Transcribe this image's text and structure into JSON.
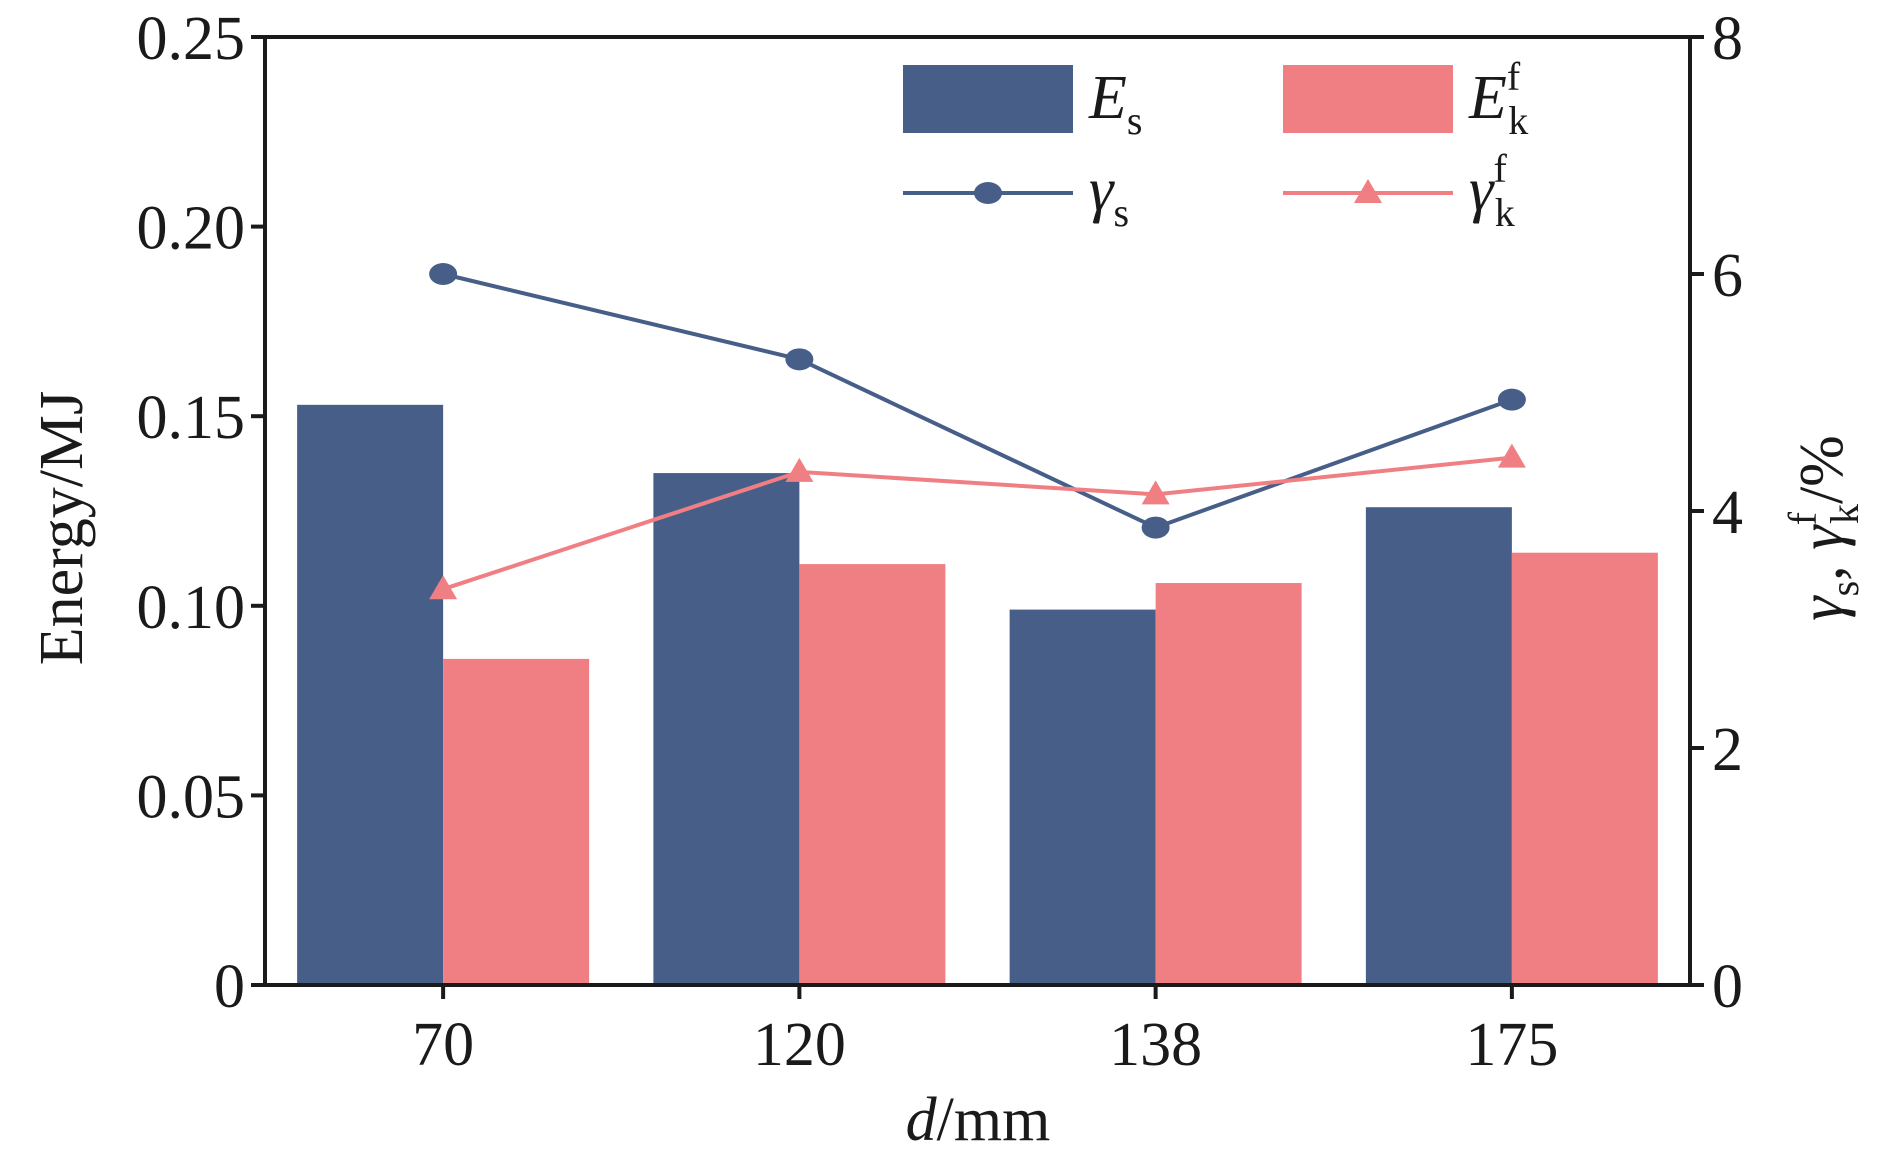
{
  "chart_data": {
    "type": "bar",
    "categories": [
      "70",
      "120",
      "138",
      "175"
    ],
    "x_axis": {
      "label_var": "d",
      "label_unit": "/mm"
    },
    "y_left": {
      "label": "Energy/MJ",
      "ylim": [
        0,
        0.25
      ],
      "ticks": [
        0,
        0.05,
        0.1,
        0.15,
        0.2,
        0.25
      ],
      "tick_labels": [
        "0",
        "0.05",
        "0.10",
        "0.15",
        "0.20",
        "0.25"
      ]
    },
    "y_right": {
      "label_parts": {
        "g1": "γ",
        "s": "s",
        "sep": ", ",
        "g2": "γ",
        "sup": "f",
        "sub": "k",
        "unit": "/%"
      },
      "ylim": [
        0,
        8
      ],
      "ticks": [
        0,
        2,
        4,
        6,
        8
      ],
      "tick_labels": [
        "0",
        "2",
        "4",
        "6",
        "8"
      ]
    },
    "bar_series": [
      {
        "id": "es",
        "legend_main": "E",
        "legend_sub": "s",
        "legend_sup": "",
        "color": "#475f88",
        "values": [
          0.153,
          0.135,
          0.099,
          0.126
        ]
      },
      {
        "id": "ekf",
        "legend_main": "E",
        "legend_sub": "k",
        "legend_sup": "f",
        "color": "#f07f83",
        "values": [
          0.086,
          0.111,
          0.106,
          0.114
        ]
      }
    ],
    "line_series": [
      {
        "id": "gs",
        "legend_main": "γ",
        "legend_sub": "s",
        "legend_sup": "",
        "color": "#475f88",
        "marker": "circle",
        "values": [
          6.0,
          5.28,
          3.86,
          4.94
        ]
      },
      {
        "id": "gkf",
        "legend_main": "γ",
        "legend_sub": "k",
        "legend_sup": "f",
        "color": "#f07f83",
        "marker": "triangle",
        "values": [
          3.34,
          4.33,
          4.14,
          4.45
        ]
      }
    ],
    "legend_position": "top-right",
    "grid": false
  }
}
